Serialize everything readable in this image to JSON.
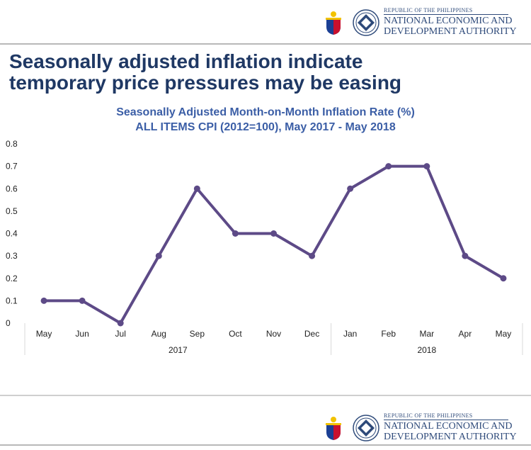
{
  "header": {
    "agency_small": "REPUBLIC OF THE PHILIPPINES",
    "agency_line1": "NATIONAL ECONOMIC AND",
    "agency_line2": "DEVELOPMENT AUTHORITY"
  },
  "slide": {
    "title_line1": "Seasonally adjusted inflation indicate",
    "title_line2": "temporary price pressures may be easing"
  },
  "chart_data": {
    "type": "line",
    "title": "Seasonally Adjusted Month-on-Month Inflation Rate (%)",
    "subtitle": "ALL ITEMS CPI (2012=100), May 2017 - May 2018",
    "categories": [
      "May",
      "Jun",
      "Jul",
      "Aug",
      "Sep",
      "Oct",
      "Nov",
      "Dec",
      "Jan",
      "Feb",
      "Mar",
      "Apr",
      "May"
    ],
    "category_groups": [
      {
        "label": "2017",
        "count": 8
      },
      {
        "label": "2018",
        "count": 5
      }
    ],
    "series": [
      {
        "values": [
          0.1,
          0.1,
          0.0,
          0.3,
          0.6,
          0.4,
          0.4,
          0.3,
          0.6,
          0.7,
          0.7,
          0.3,
          0.2
        ]
      }
    ],
    "yticks": [
      "0",
      "0.1",
      "0.2",
      "0.3",
      "0.4",
      "0.5",
      "0.6",
      "0.7",
      "0.8"
    ],
    "ylim": [
      0,
      0.8
    ],
    "grid": false,
    "line_color": "#5d4a87",
    "title_color": "#3b5ea6"
  },
  "colors": {
    "slide_title": "#1f3864",
    "agency": "#2e4a7a"
  }
}
